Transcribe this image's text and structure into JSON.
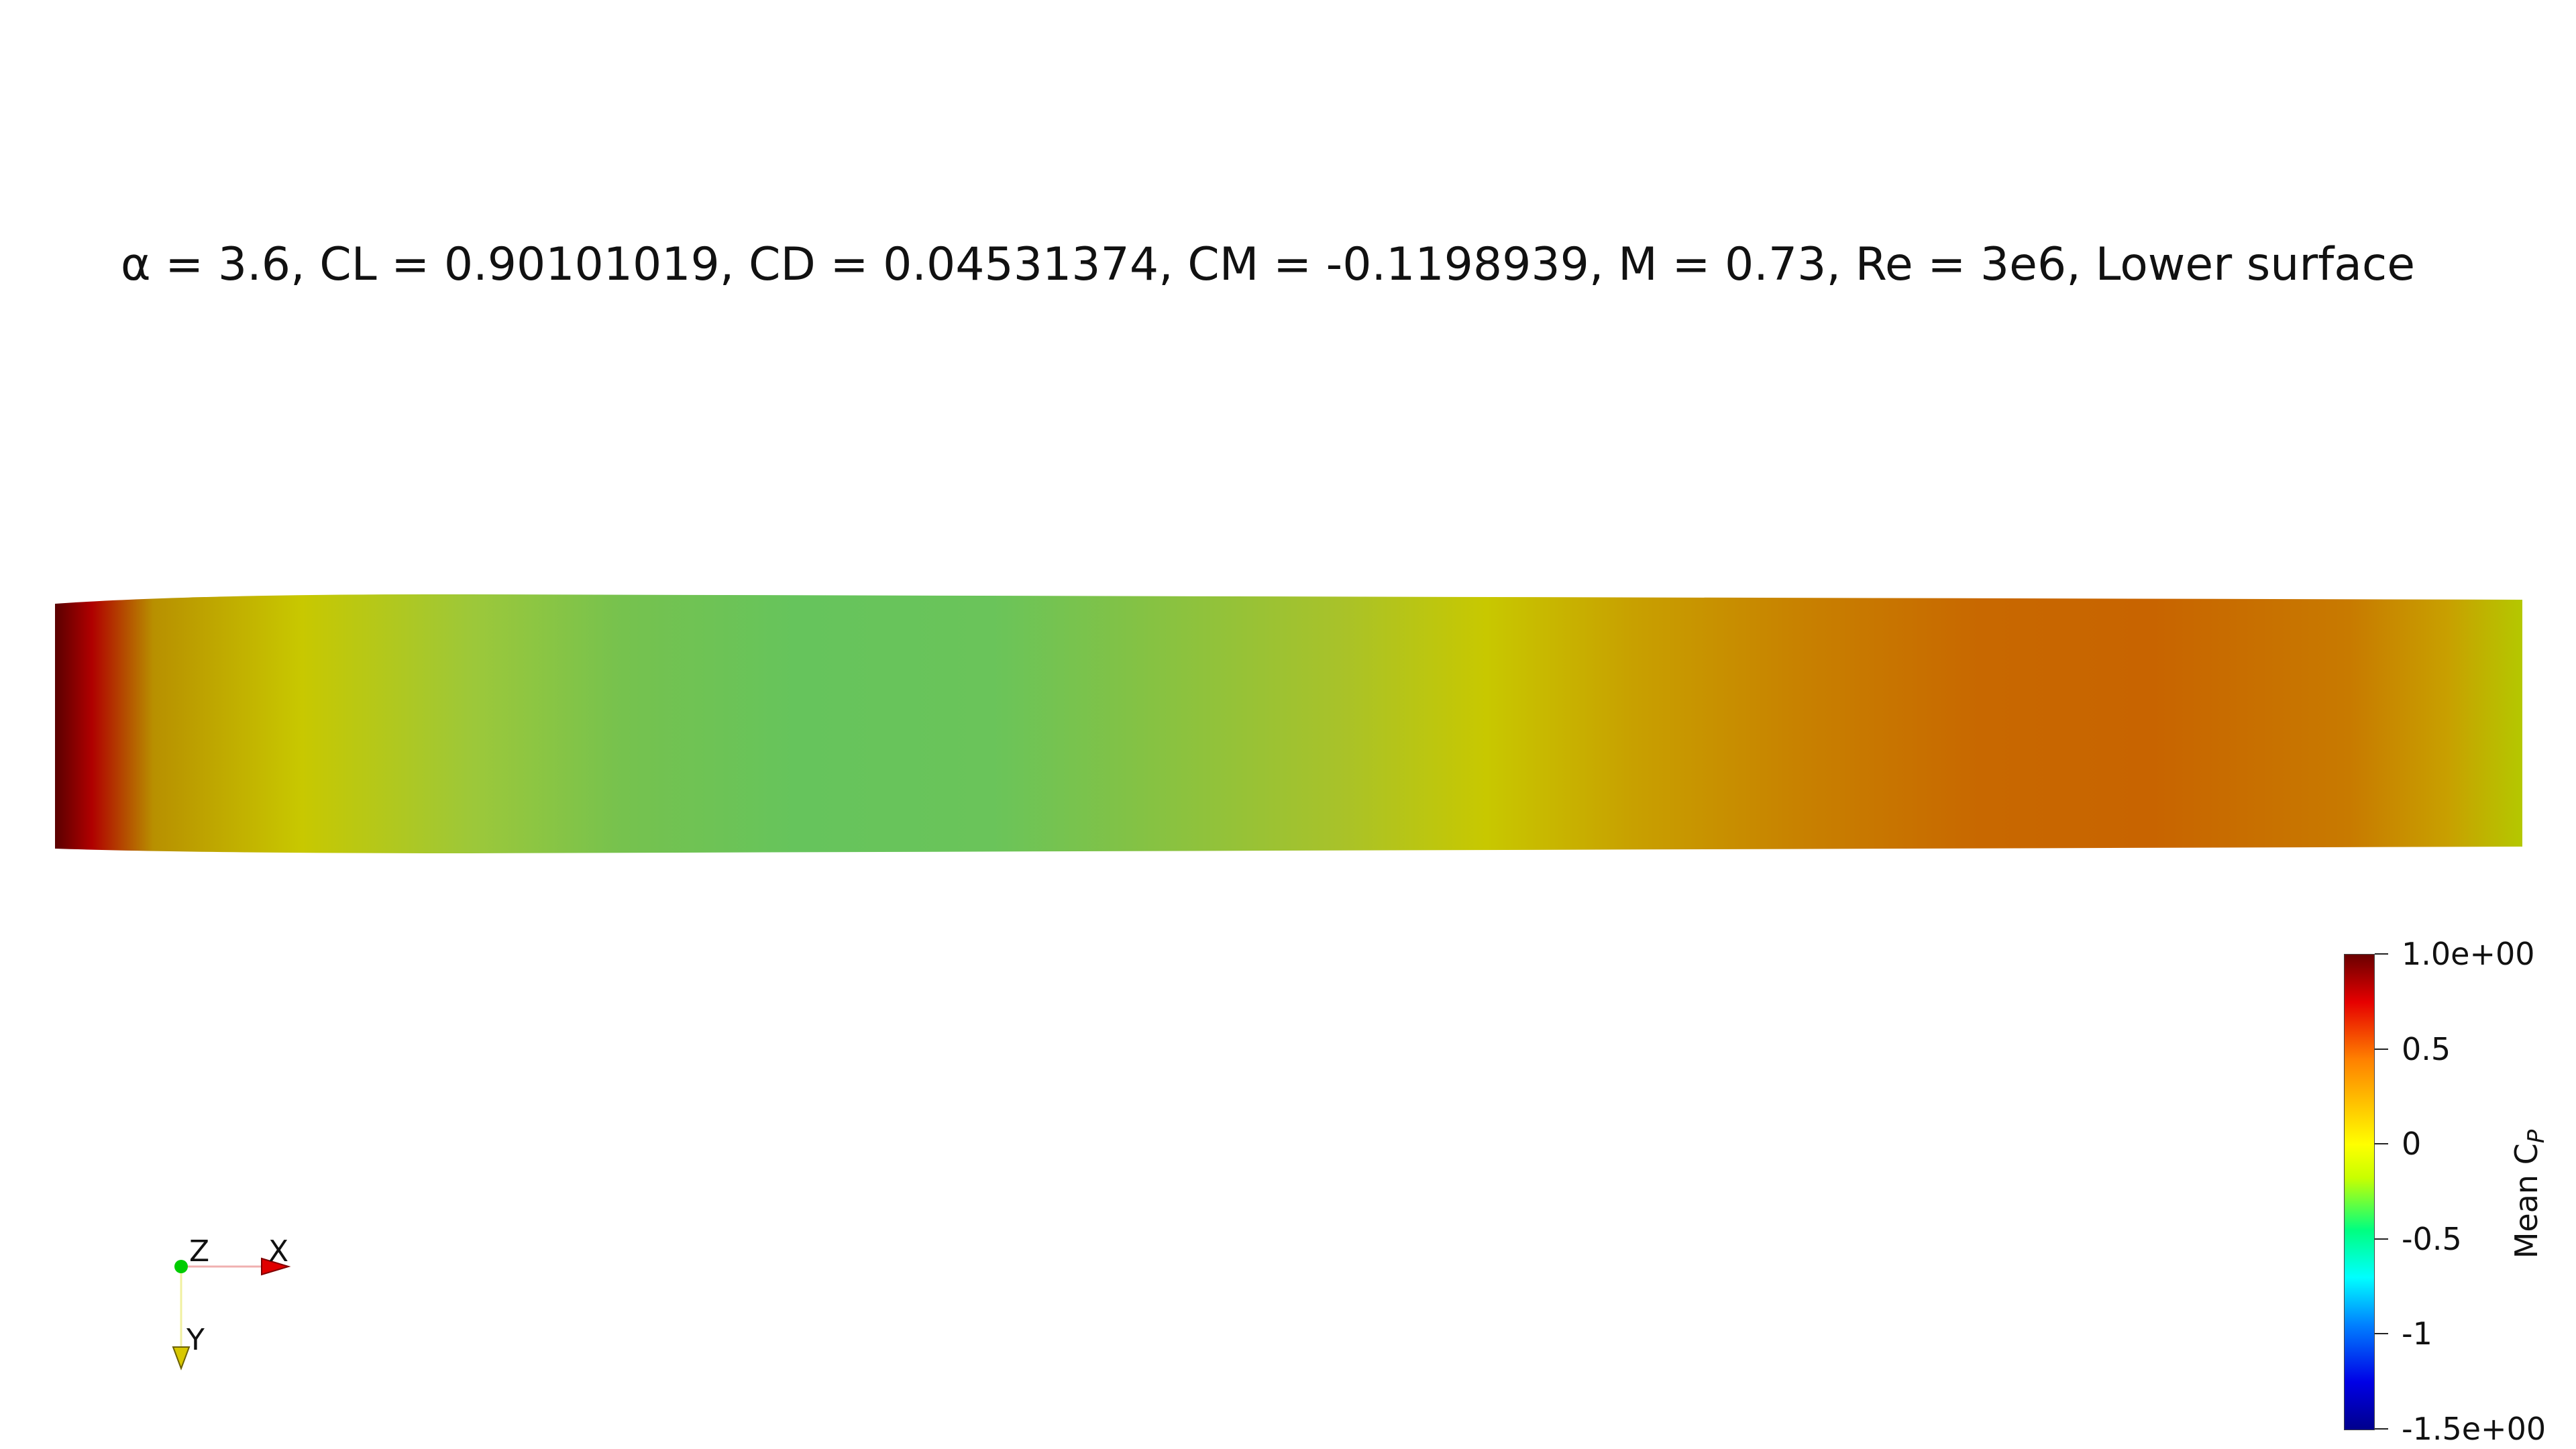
{
  "title": "α = 3.6, CL = 0.90101019, CD = 0.04531374, CM = -0.1198939, M = 0.73, Re = 3e6, Lower surface",
  "colorbar": {
    "title_main": "Mean C",
    "title_sub": "P",
    "labels": [
      "1.0e+00",
      "0.5",
      "0",
      "-0.5",
      "-1",
      "-1.5e+00"
    ],
    "range": [
      -1.5,
      1.0
    ]
  },
  "axes": {
    "x": "X",
    "y": "Y",
    "z": "Z"
  },
  "colors": {
    "x_axis": "#e00000",
    "y_axis": "#d8c800",
    "z_axis": "#00cc00"
  }
}
